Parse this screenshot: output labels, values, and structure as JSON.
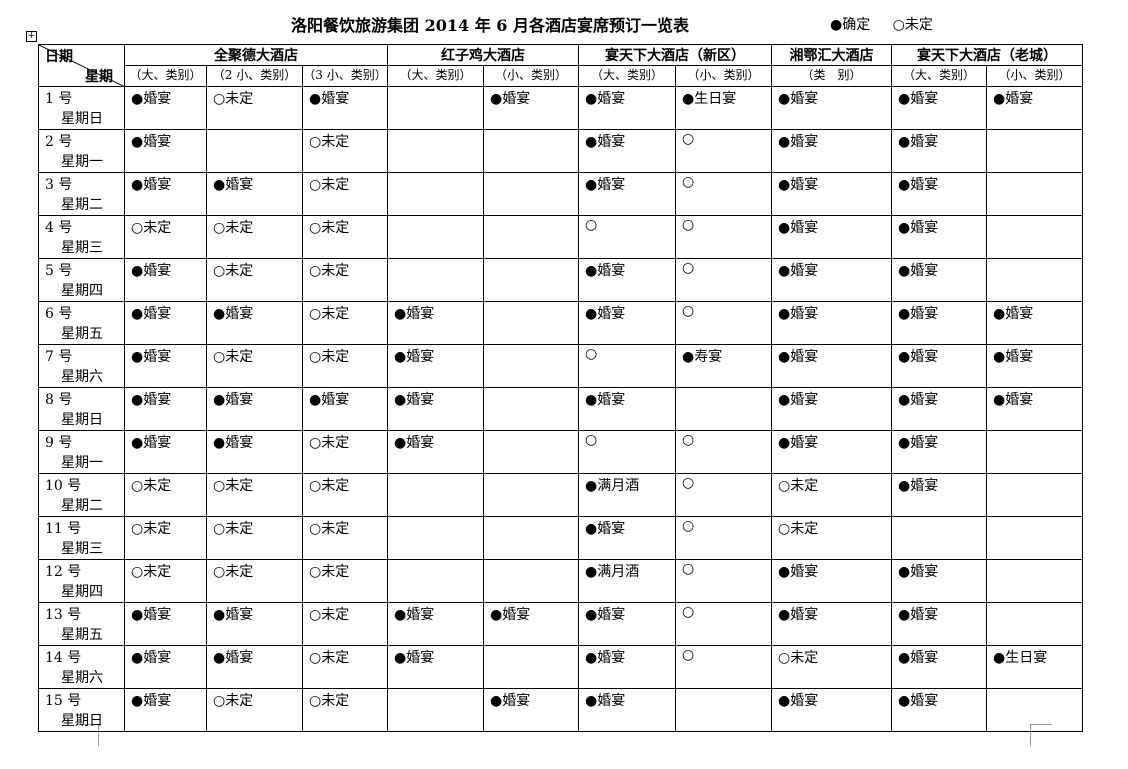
{
  "title": "洛阳餐饮旅游集团 2014 年 6 月各酒店宴席预订一览表",
  "legend": {
    "confirmed": "●确定",
    "pending": "○未定"
  },
  "table": {
    "corner": {
      "date": "日期",
      "weekday": "星期"
    },
    "hotels": [
      {
        "name": "全聚德大酒店",
        "subheaders": [
          "（大、类别）",
          "（2 小、类别）",
          "（3 小、类别）"
        ]
      },
      {
        "name": "红子鸡大酒店",
        "subheaders": [
          "（大、类别）",
          "（小、类别）"
        ]
      },
      {
        "name": "宴天下大酒店（新区）",
        "subheaders": [
          "（大、类别）",
          "（小、类别）"
        ]
      },
      {
        "name": "湘鄂汇大酒店",
        "subheaders": [
          "（类　别）"
        ]
      },
      {
        "name": "宴天下大酒店（老城）",
        "subheaders": [
          "（大、类别）",
          "（小、类别）"
        ]
      }
    ],
    "rows": [
      {
        "date": "1 号",
        "weekday": "星期日",
        "cells": [
          "●婚宴",
          "○未定",
          "●婚宴",
          null,
          "●婚宴",
          "●婚宴",
          "●生日宴",
          "●婚宴",
          "●婚宴",
          "●婚宴"
        ]
      },
      {
        "date": "2 号",
        "weekday": "星期一",
        "cells": [
          "●婚宴",
          null,
          "○未定",
          null,
          null,
          "●婚宴",
          "○",
          "●婚宴",
          "●婚宴",
          null
        ]
      },
      {
        "date": "3 号",
        "weekday": "星期二",
        "cells": [
          "●婚宴",
          "●婚宴",
          "○未定",
          null,
          null,
          "●婚宴",
          "○",
          "●婚宴",
          "●婚宴",
          null
        ]
      },
      {
        "date": "4 号",
        "weekday": "星期三",
        "cells": [
          "○未定",
          "○未定",
          "○未定",
          null,
          null,
          "○",
          "○",
          "●婚宴",
          "●婚宴",
          null
        ]
      },
      {
        "date": "5 号",
        "weekday": "星期四",
        "cells": [
          "●婚宴",
          "○未定",
          "○未定",
          null,
          null,
          "●婚宴",
          "○",
          "●婚宴",
          "●婚宴",
          null
        ]
      },
      {
        "date": "6 号",
        "weekday": "星期五",
        "cells": [
          "●婚宴",
          "●婚宴",
          "○未定",
          "●婚宴",
          null,
          "●婚宴",
          "○",
          "●婚宴",
          "●婚宴",
          "●婚宴"
        ]
      },
      {
        "date": "7 号",
        "weekday": "星期六",
        "cells": [
          "●婚宴",
          "○未定",
          "○未定",
          "●婚宴",
          null,
          "○",
          "●寿宴",
          "●婚宴",
          "●婚宴",
          "●婚宴"
        ]
      },
      {
        "date": "8 号",
        "weekday": "星期日",
        "cells": [
          "●婚宴",
          "●婚宴",
          "●婚宴",
          "●婚宴",
          null,
          "●婚宴",
          null,
          "●婚宴",
          "●婚宴",
          "●婚宴"
        ]
      },
      {
        "date": "9 号",
        "weekday": "星期一",
        "cells": [
          "●婚宴",
          "●婚宴",
          "○未定",
          "●婚宴",
          null,
          "○",
          "○",
          "●婚宴",
          "●婚宴",
          null
        ]
      },
      {
        "date": "10 号",
        "weekday": "星期二",
        "cells": [
          "○未定",
          "○未定",
          "○未定",
          null,
          null,
          "●满月酒",
          "○",
          "○未定",
          "●婚宴",
          null
        ]
      },
      {
        "date": "11 号",
        "weekday": "星期三",
        "cells": [
          "○未定",
          "○未定",
          "○未定",
          null,
          null,
          "●婚宴",
          "○",
          "○未定",
          null,
          null
        ]
      },
      {
        "date": "12 号",
        "weekday": "星期四",
        "cells": [
          "○未定",
          "○未定",
          "○未定",
          null,
          null,
          "●满月酒",
          "○",
          "●婚宴",
          "●婚宴",
          null
        ]
      },
      {
        "date": "13 号",
        "weekday": "星期五",
        "cells": [
          "●婚宴",
          "●婚宴",
          "○未定",
          "●婚宴",
          "●婚宴",
          "●婚宴",
          "○",
          "●婚宴",
          "●婚宴",
          null
        ]
      },
      {
        "date": "14 号",
        "weekday": "星期六",
        "cells": [
          "●婚宴",
          "●婚宴",
          "○未定",
          "●婚宴",
          null,
          "●婚宴",
          "○",
          "○未定",
          "●婚宴",
          "●生日宴"
        ]
      },
      {
        "date": "15 号",
        "weekday": "星期日",
        "cells": [
          "●婚宴",
          "○未定",
          "○未定",
          null,
          "●婚宴",
          "●婚宴",
          null,
          "●婚宴",
          "●婚宴",
          null
        ]
      }
    ]
  }
}
